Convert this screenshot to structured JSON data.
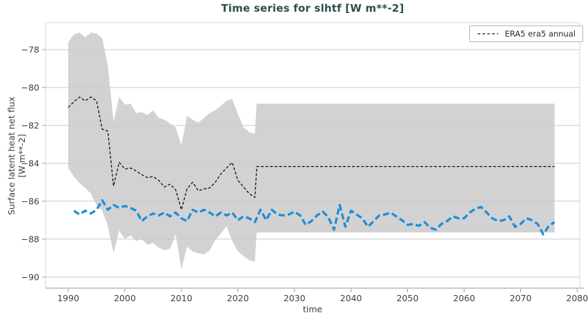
{
  "chart_data": {
    "type": "line",
    "title": "Time series for slhtf [W m**-2]",
    "xlabel": "time",
    "ylabel_lines": [
      "Surface latent heat net flux",
      "[W m**-2]"
    ],
    "xlim": [
      1985.98,
      2080.45
    ],
    "ylim": [
      -90.55,
      -76.58
    ],
    "xticks": [
      1990,
      2000,
      2010,
      2020,
      2030,
      2040,
      2050,
      2060,
      2070,
      2080
    ],
    "yticks": [
      -90,
      -88,
      -86,
      -84,
      -82,
      -80,
      -78
    ],
    "grid": true,
    "legend": {
      "position": "top-right",
      "entries": [
        {
          "label": "ERA5 era5 annual",
          "color": "#1a1a1a",
          "style": "dashed"
        }
      ]
    },
    "colors": {
      "band": "#d2d2d2",
      "grid": "#c9c9c9",
      "spine": "#d6d6d6",
      "axis_line": "#c9c9c9",
      "tick": "#9a9a9a",
      "axis_text": "#3d3d3d",
      "title": "#2d4d4d",
      "era5_line": "#1a1a1a",
      "model_line": "#1c8dd9"
    },
    "band": {
      "years": [
        1990,
        1991,
        1992,
        1993,
        1994,
        1995,
        1996,
        1997,
        1998,
        1999,
        2000,
        2001,
        2002,
        2003,
        2004,
        2005,
        2006,
        2007,
        2008,
        2009,
        2010,
        2011,
        2012,
        2013,
        2014,
        2015,
        2016,
        2017,
        2018,
        2019,
        2020,
        2021,
        2022,
        2023,
        2023.3,
        2076
      ],
      "upper": [
        -77.6,
        -77.2,
        -77.1,
        -77.35,
        -77.1,
        -77.15,
        -77.4,
        -78.85,
        -81.8,
        -80.5,
        -80.9,
        -80.85,
        -81.35,
        -81.3,
        -81.45,
        -81.2,
        -81.6,
        -81.7,
        -81.9,
        -82.1,
        -83.05,
        -81.5,
        -81.7,
        -81.85,
        -81.6,
        -81.35,
        -81.2,
        -80.95,
        -80.7,
        -80.6,
        -81.4,
        -82.1,
        -82.35,
        -82.45,
        -80.85,
        -80.85
      ],
      "lower": [
        -84.25,
        -84.7,
        -85.05,
        -85.3,
        -85.6,
        -86.2,
        -86.5,
        -87.3,
        -88.75,
        -87.55,
        -88.0,
        -87.8,
        -88.1,
        -88.0,
        -88.3,
        -88.2,
        -88.45,
        -88.6,
        -88.5,
        -87.75,
        -89.6,
        -88.4,
        -88.65,
        -88.75,
        -88.8,
        -88.6,
        -88.05,
        -87.7,
        -87.3,
        -88.1,
        -88.65,
        -88.9,
        -89.1,
        -89.2,
        -87.65,
        -87.65
      ]
    },
    "series": [
      {
        "id": "era5-annual",
        "label": "ERA5 era5 annual",
        "style": "dashed",
        "color_key": "era5_line",
        "years": [
          1990,
          1991,
          1992,
          1993,
          1994,
          1995,
          1996,
          1997,
          1998,
          1999,
          2000,
          2001,
          2002,
          2003,
          2004,
          2005,
          2006,
          2007,
          2008,
          2009,
          2010,
          2011,
          2012,
          2013,
          2014,
          2015,
          2016,
          2017,
          2018,
          2019,
          2020,
          2021,
          2022,
          2023,
          2023.35,
          2076
        ],
        "values": [
          -81.05,
          -80.75,
          -80.5,
          -80.7,
          -80.5,
          -80.7,
          -82.2,
          -82.3,
          -85.2,
          -83.95,
          -84.3,
          -84.25,
          -84.4,
          -84.6,
          -84.75,
          -84.7,
          -84.9,
          -85.25,
          -85.1,
          -85.4,
          -86.45,
          -85.35,
          -85.0,
          -85.45,
          -85.35,
          -85.3,
          -85.0,
          -84.55,
          -84.25,
          -83.95,
          -84.9,
          -85.25,
          -85.6,
          -85.8,
          -84.17,
          -84.17
        ]
      },
      {
        "id": "model-annual",
        "label": "",
        "style": "dashed",
        "color_key": "model_line",
        "years": [
          1991,
          1992,
          1993,
          1994,
          1995,
          1996,
          1997,
          1998,
          1999,
          2000,
          2001,
          2002,
          2003,
          2004,
          2005,
          2006,
          2007,
          2008,
          2009,
          2010,
          2011,
          2012,
          2013,
          2014,
          2015,
          2016,
          2017,
          2018,
          2019,
          2020,
          2021,
          2022,
          2023,
          2024,
          2025,
          2026,
          2027,
          2028,
          2029,
          2030,
          2031,
          2032,
          2033,
          2034,
          2035,
          2036,
          2037,
          2038,
          2039,
          2040,
          2041,
          2042,
          2043,
          2044,
          2045,
          2046,
          2047,
          2048,
          2049,
          2050,
          2051,
          2052,
          2053,
          2054,
          2055,
          2056,
          2057,
          2058,
          2059,
          2060,
          2061,
          2062,
          2063,
          2064,
          2065,
          2066,
          2067,
          2068,
          2069,
          2070,
          2071,
          2072,
          2073,
          2074,
          2075,
          2076
        ],
        "values": [
          -86.5,
          -86.7,
          -86.5,
          -86.65,
          -86.45,
          -85.95,
          -86.45,
          -86.2,
          -86.35,
          -86.25,
          -86.35,
          -86.5,
          -87.05,
          -86.8,
          -86.65,
          -86.75,
          -86.6,
          -86.8,
          -86.6,
          -86.9,
          -87.05,
          -86.45,
          -86.6,
          -86.45,
          -86.6,
          -86.8,
          -86.6,
          -86.75,
          -86.6,
          -87.0,
          -86.8,
          -86.9,
          -87.1,
          -86.45,
          -87.0,
          -86.45,
          -86.7,
          -86.75,
          -86.7,
          -86.55,
          -86.75,
          -87.25,
          -87.05,
          -86.75,
          -86.55,
          -86.85,
          -87.5,
          -86.2,
          -87.35,
          -86.5,
          -86.7,
          -86.9,
          -87.35,
          -87.05,
          -86.75,
          -86.7,
          -86.6,
          -86.8,
          -87.0,
          -87.25,
          -87.2,
          -87.3,
          -87.1,
          -87.4,
          -87.5,
          -87.2,
          -87.05,
          -86.8,
          -86.9,
          -86.9,
          -86.6,
          -86.4,
          -86.3,
          -86.6,
          -86.9,
          -87.05,
          -87.0,
          -86.8,
          -87.35,
          -87.2,
          -86.9,
          -87.0,
          -87.2,
          -87.75,
          -87.3,
          -87.1
        ]
      }
    ]
  }
}
